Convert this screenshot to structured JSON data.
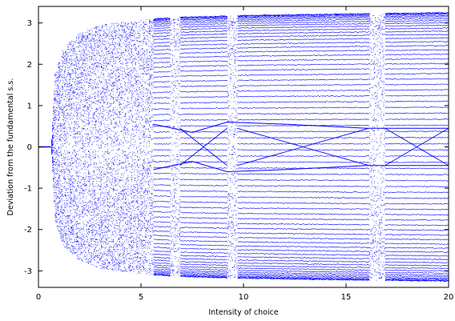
{
  "chart_data": {
    "type": "scatter",
    "title": "",
    "xlabel": "Intensity of choice",
    "ylabel": "Deviation from the fundamental s.s.",
    "xlim": [
      0,
      20
    ],
    "ylim": [
      -3.4,
      3.4
    ],
    "xticks": [
      0,
      5,
      10,
      15,
      20
    ],
    "xtick_labels": [
      "0",
      "5",
      "10",
      "15",
      "20"
    ],
    "yticks": [
      3,
      2,
      1,
      0,
      -1,
      -2,
      -3
    ],
    "ytick_labels": [
      "3",
      "2",
      "1",
      "0",
      "-1",
      "-2",
      "-3"
    ],
    "grid": false,
    "legend": "none",
    "point_color": "#0000ff",
    "description_series": {
      "fixed_point": {
        "x": [
          0,
          0.6
        ],
        "y": [
          0,
          0
        ]
      },
      "envelope_max": {
        "x": [
          0.6,
          0.8,
          1.2,
          2,
          3,
          5,
          7,
          10,
          15,
          20
        ],
        "y": [
          0,
          1.8,
          2.4,
          2.75,
          2.95,
          3.08,
          3.14,
          3.18,
          3.22,
          3.25
        ]
      },
      "central_crossing_branches": [
        {
          "x": [
            5.6,
            7.5,
            9.2,
            12,
            16,
            20
          ],
          "y": [
            0.55,
            0.35,
            0.6,
            0.55,
            0.45,
            0.45
          ]
        },
        {
          "x": [
            5.6,
            7.5,
            9.2,
            12,
            16,
            20
          ],
          "y": [
            -0.55,
            -0.35,
            -0.6,
            -0.55,
            -0.45,
            -0.45
          ]
        }
      ],
      "chaotic_windows_x": [
        [
          0.6,
          5.6
        ],
        [
          6.4,
          6.9
        ],
        [
          9.2,
          9.7
        ],
        [
          16.1,
          16.9
        ]
      ]
    }
  }
}
